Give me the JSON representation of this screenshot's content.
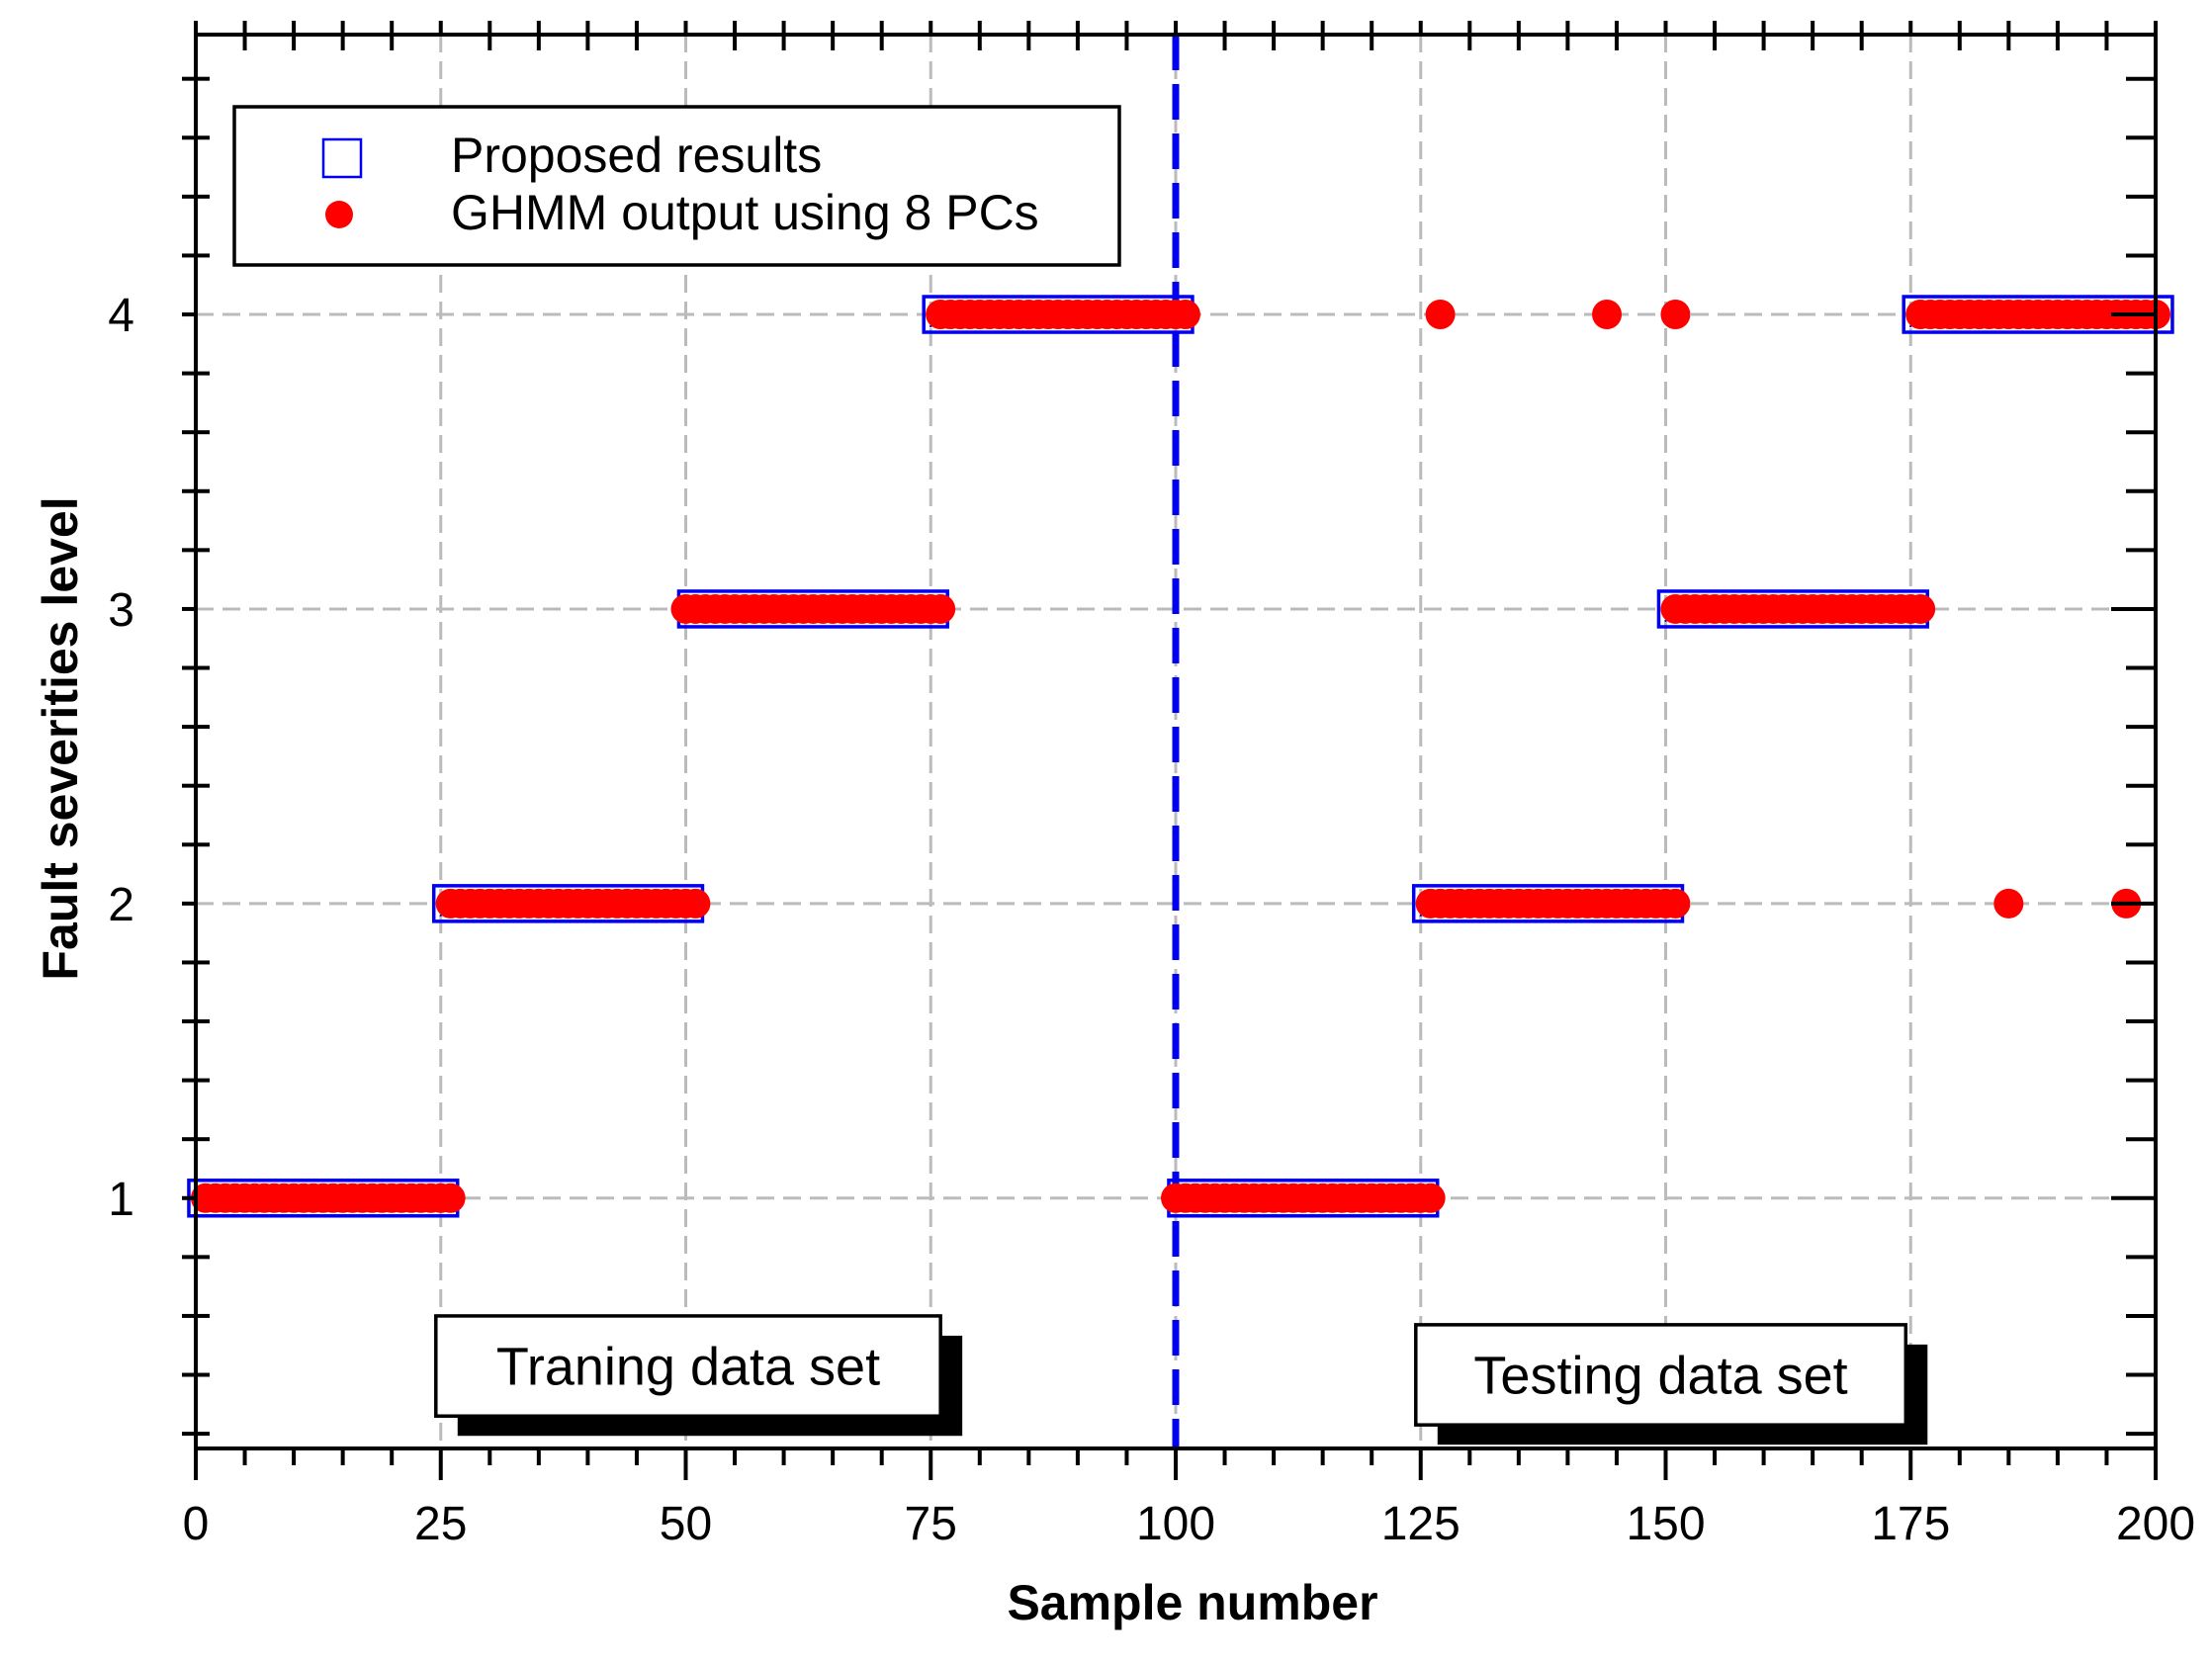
{
  "chart_data": {
    "type": "scatter",
    "xlabel": "Sample number",
    "ylabel": "Fault severities level",
    "xlim": [
      0,
      200
    ],
    "ylim": [
      0.15,
      4.95
    ],
    "x_ticks": [
      0,
      25,
      50,
      75,
      100,
      125,
      150,
      175,
      200
    ],
    "y_ticks": [
      1,
      2,
      3,
      4
    ],
    "grid": "dashed",
    "legend_position": "top-left",
    "colors": {
      "proposed": "#0000ee",
      "ghmm": "#ff0000",
      "divider": "#0000ee",
      "grid": "#bbbbbb"
    },
    "series": [
      {
        "name": "Proposed results",
        "marker": "open-square",
        "segments": [
          {
            "x_start": 1,
            "x_end": 25,
            "y": 1
          },
          {
            "x_start": 26,
            "x_end": 50,
            "y": 2
          },
          {
            "x_start": 51,
            "x_end": 75,
            "y": 3
          },
          {
            "x_start": 76,
            "x_end": 100,
            "y": 4
          },
          {
            "x_start": 101,
            "x_end": 125,
            "y": 1
          },
          {
            "x_start": 126,
            "x_end": 150,
            "y": 2
          },
          {
            "x_start": 151,
            "x_end": 175,
            "y": 3
          },
          {
            "x_start": 176,
            "x_end": 200,
            "y": 4
          }
        ]
      },
      {
        "name": "GHMM output using 8 PCs",
        "marker": "filled-circle",
        "segments": [
          {
            "x_start": 1,
            "x_end": 26,
            "y": 1
          },
          {
            "x_start": 26,
            "x_end": 51,
            "y": 2
          },
          {
            "x_start": 50,
            "x_end": 76,
            "y": 3
          },
          {
            "x_start": 76,
            "x_end": 101,
            "y": 4
          },
          {
            "x_start": 100,
            "x_end": 126,
            "y": 1
          },
          {
            "x_start": 126,
            "x_end": 151,
            "y": 2
          },
          {
            "x_start": 151,
            "x_end": 176,
            "y": 3
          },
          {
            "x_start": 176,
            "x_end": 200,
            "y": 4
          }
        ],
        "outliers": [
          {
            "x": 127,
            "y": 4
          },
          {
            "x": 144,
            "y": 4
          },
          {
            "x": 151,
            "y": 4
          },
          {
            "x": 185,
            "y": 2
          },
          {
            "x": 197,
            "y": 2
          }
        ]
      }
    ],
    "divider_x": 100,
    "annotations": [
      {
        "text": "Traning data set",
        "x_start": 24.5,
        "x_end": 76,
        "y_top": 0.6,
        "y_bottom": 0.26
      },
      {
        "text": "Testing data set",
        "x_start": 124.5,
        "x_end": 174.5,
        "y_top": 0.57,
        "y_bottom": 0.23
      }
    ]
  }
}
